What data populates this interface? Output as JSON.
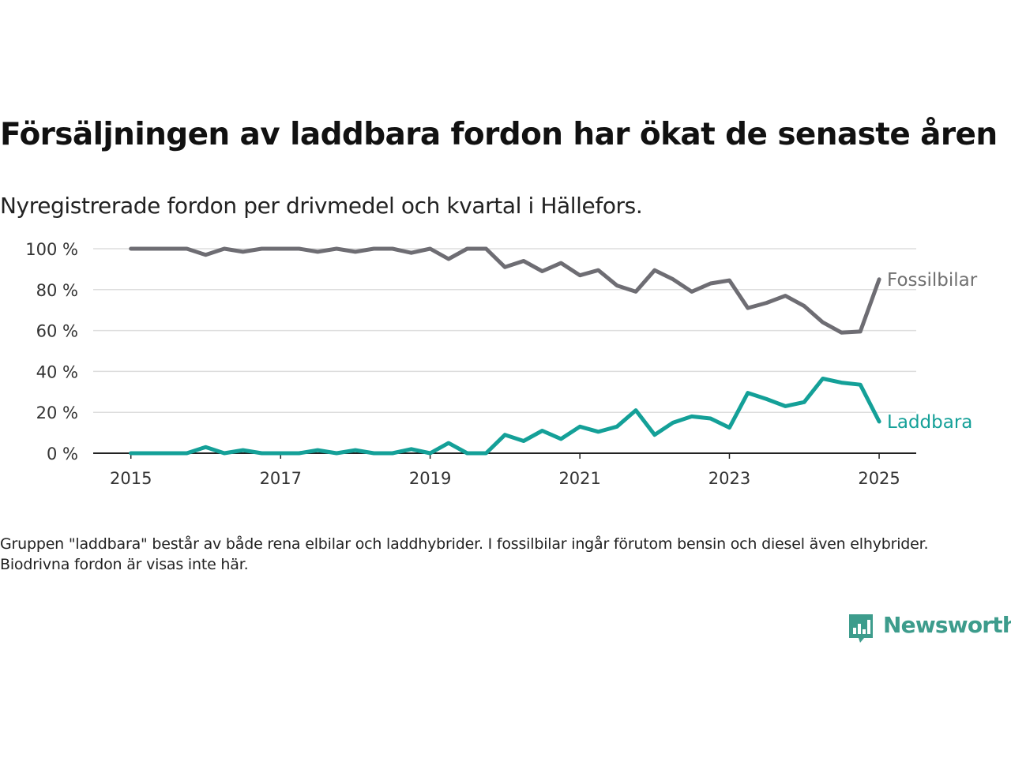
{
  "title": "Försäljningen av laddbara fordon har ökat de senaste åren",
  "subtitle": "Nyregistrerade fordon per drivmedel och kvartal i Hällefors.",
  "note": "Gruppen \"laddbara\" består av både rena elbilar och laddhybrider. I fossilbilar ingår förutom bensin och diesel även elhybrider. Biodrivna fordon är visas inte här.",
  "brand": {
    "name": "Newsworthy",
    "icon": "newsworthy-logo-icon",
    "color": "#3d9c8c"
  },
  "chart_data": {
    "type": "line",
    "title": "Försäljningen av laddbara fordon har ökat de senaste åren",
    "subtitle": "Nyregistrerade fordon per drivmedel och kvartal i Hällefors.",
    "xlabel": "",
    "ylabel": "",
    "x": [
      "2015-01-01",
      "2015-04-01",
      "2015-07-01",
      "2015-10-01",
      "2016-01-01",
      "2016-04-01",
      "2016-07-01",
      "2016-10-01",
      "2017-01-01",
      "2017-04-01",
      "2017-07-01",
      "2017-10-01",
      "2018-01-01",
      "2018-04-01",
      "2018-07-01",
      "2018-10-01",
      "2019-01-01",
      "2019-04-01",
      "2019-07-01",
      "2019-10-01",
      "2020-01-01",
      "2020-04-01",
      "2020-07-01",
      "2020-10-01",
      "2021-01-01",
      "2021-04-01",
      "2021-07-01",
      "2021-10-01",
      "2022-01-01",
      "2022-04-01",
      "2022-07-01",
      "2022-10-01",
      "2023-01-01",
      "2023-04-01",
      "2023-07-01",
      "2023-10-01",
      "2024-01-01",
      "2024-04-01",
      "2024-07-01",
      "2024-10-01",
      "2025-01-01"
    ],
    "xticks": [
      "2015",
      "2017",
      "2019",
      "2021",
      "2023",
      "2025"
    ],
    "xlim": [
      "2014-07-01",
      "2025-07-01"
    ],
    "yticks": [
      0,
      20,
      40,
      60,
      80,
      100
    ],
    "ytick_labels": [
      "0 %",
      "20 %",
      "40 %",
      "60 %",
      "80 %",
      "100 %"
    ],
    "ylim": [
      0,
      100
    ],
    "grid": "horizontal",
    "legend": "direct labels at line ends, right",
    "series": [
      {
        "name": "Fossilbilar",
        "color": "#6e6d73",
        "label_color": "#707070",
        "values": [
          100,
          100,
          100,
          100,
          97,
          100,
          98.5,
          100,
          100,
          100,
          98.5,
          100,
          98.5,
          100,
          100,
          98,
          100,
          95,
          100,
          100,
          91,
          94,
          89,
          93,
          87,
          89.5,
          82,
          79,
          89.5,
          85,
          79,
          83,
          84.5,
          71,
          73.5,
          77,
          72,
          64,
          59,
          59.5,
          85
        ]
      },
      {
        "name": "Laddbara",
        "color": "#14a098",
        "label_color": "#14a098",
        "values": [
          0,
          0,
          0,
          0,
          3,
          0,
          1.5,
          0,
          0,
          0,
          1.5,
          0,
          1.5,
          0,
          0,
          2,
          0,
          5,
          0,
          0,
          9,
          6,
          11,
          7,
          13,
          10.5,
          13,
          21,
          9,
          15,
          18,
          17,
          12.5,
          29.5,
          26.5,
          23,
          25,
          36.5,
          34.5,
          33.5,
          15.5
        ]
      }
    ]
  }
}
